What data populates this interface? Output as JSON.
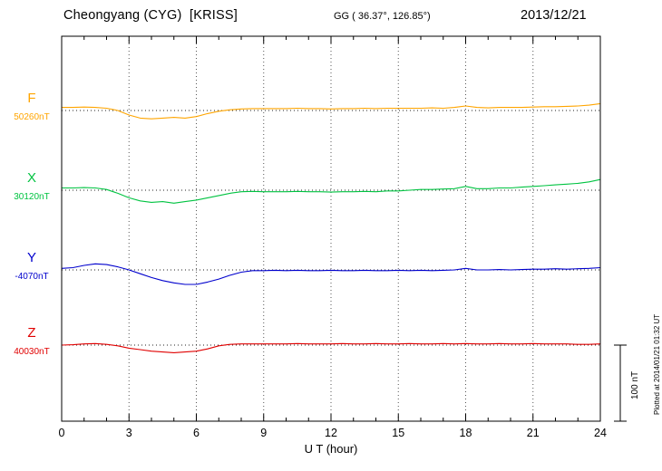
{
  "header": {
    "station": "Cheongyang (CYG)  [KRISS]",
    "coords": "GG ( 36.37°, 126.85°)",
    "date": "2013/12/21"
  },
  "axis": {
    "xlabel": "U T (hour)",
    "tick_labels": [
      "0",
      "3",
      "6",
      "9",
      "12",
      "15",
      "18",
      "21",
      "24"
    ]
  },
  "scale_bar": {
    "label": "100 nT",
    "span_nT": 100
  },
  "footer_note": "Plotted at 2014/01/21 01:32 UT",
  "chart_data": {
    "type": "line",
    "title": "Cheongyang (CYG) [KRISS] magnetogram 2013/12/21",
    "xlabel": "U T (hour)",
    "xlim": [
      0,
      24
    ],
    "grid_hours": [
      3,
      6,
      9,
      12,
      15,
      18,
      21
    ],
    "legend_position": "left-margin",
    "grid": true,
    "x_hours": [
      0,
      0.5,
      1,
      1.5,
      2,
      2.5,
      3,
      3.5,
      4,
      4.5,
      5,
      5.5,
      6,
      6.5,
      7,
      7.5,
      8,
      8.5,
      9,
      9.5,
      10,
      10.5,
      11,
      11.5,
      12,
      12.5,
      13,
      13.5,
      14,
      14.5,
      15,
      15.5,
      16,
      16.5,
      17,
      17.5,
      18,
      18.5,
      19,
      19.5,
      20,
      20.5,
      21,
      21.5,
      22,
      22.5,
      23,
      23.5,
      24
    ],
    "series": [
      {
        "name": "F",
        "value_label": "50260nT",
        "baseline_nT": 50260,
        "color": "#FFA500",
        "offsets_nT": [
          4,
          4,
          4.5,
          4,
          3,
          0,
          -6,
          -10,
          -11,
          -10,
          -9,
          -10,
          -8,
          -4,
          -1,
          1,
          2,
          2.5,
          2.5,
          2.5,
          2.5,
          3,
          2.5,
          2.5,
          2,
          2.5,
          2.5,
          3,
          2.5,
          3,
          3,
          3,
          3,
          3.5,
          3,
          4,
          6,
          4,
          3.5,
          4,
          4,
          4,
          4.5,
          5,
          5,
          5.5,
          6,
          7,
          9
        ]
      },
      {
        "name": "X",
        "value_label": "30120nT",
        "baseline_nT": 30120,
        "color": "#00C341",
        "offsets_nT": [
          3,
          3,
          3.5,
          3,
          1,
          -4,
          -10,
          -14,
          -16,
          -15,
          -17,
          -15,
          -13,
          -10,
          -7,
          -4,
          -2,
          -1.5,
          -2,
          -2,
          -2,
          -1.5,
          -2,
          -2,
          -2.5,
          -2,
          -2,
          -1.5,
          -2,
          -1,
          -1,
          0,
          1,
          1,
          1.5,
          2,
          5,
          2,
          2,
          3,
          3,
          4,
          5,
          6,
          7,
          8,
          9,
          11,
          14
        ]
      },
      {
        "name": "Y",
        "value_label": "-4070nT",
        "baseline_nT": -4070,
        "color": "#0000CD",
        "offsets_nT": [
          2,
          3,
          6,
          8,
          7,
          4,
          0,
          -5,
          -10,
          -14,
          -17,
          -19,
          -19,
          -16,
          -12,
          -7,
          -3,
          -1,
          -1,
          -0.5,
          -1,
          -0.5,
          -1,
          -1,
          -0.5,
          -1,
          -1,
          -0.5,
          -1,
          -1,
          -0.5,
          -1,
          -0.5,
          -1,
          -0.5,
          0,
          2,
          0,
          0,
          0.5,
          0,
          0.5,
          1,
          1,
          1.5,
          1,
          1.5,
          2,
          3
        ]
      },
      {
        "name": "Z",
        "value_label": "40030nT",
        "baseline_nT": 40030,
        "color": "#E00000",
        "offsets_nT": [
          0,
          0.5,
          1.5,
          2,
          1,
          -1,
          -4,
          -6,
          -8,
          -9,
          -10,
          -9,
          -8,
          -5,
          -1,
          1,
          1.5,
          1.5,
          1.5,
          1.5,
          1.5,
          2,
          1.5,
          1.5,
          1.5,
          2,
          1.5,
          1.5,
          2,
          1.5,
          1.5,
          2,
          1.5,
          1.5,
          2,
          1.5,
          2,
          1.5,
          1.5,
          2,
          1.5,
          1.5,
          2,
          1.5,
          1.5,
          1.5,
          1,
          1,
          1.5
        ]
      }
    ]
  }
}
